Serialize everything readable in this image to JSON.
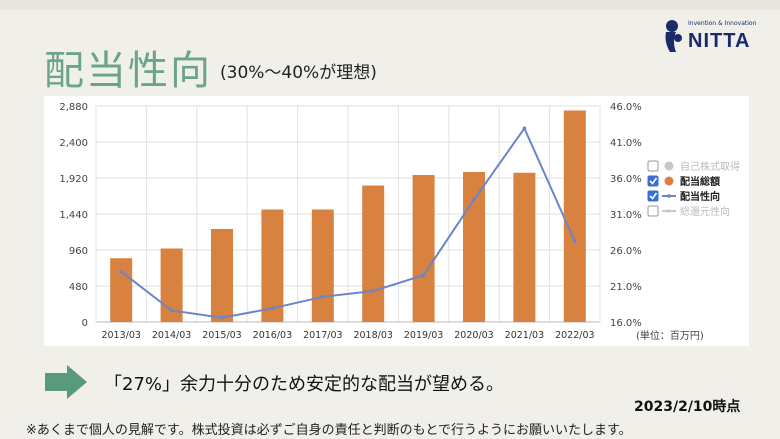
{
  "slide": {
    "title": "配当性向",
    "subtitle": "(30%〜40%が理想)",
    "logo_tagline": "Invention & Innovation",
    "logo_text": "NITTA",
    "message": "「27%」余力十分のため安定的な配当が望める。",
    "as_of": "2023/2/10時点",
    "disclaimer": "※あくまで個人の見解です。株式投資は必ずご自身の責任と判断のもとで行うようにお願いいたします。"
  },
  "colors": {
    "title": "#6aa58a",
    "bar": "#d9813e",
    "line": "#6a86c8",
    "arrow": "#5a9a7c",
    "grid": "#e2e2e2"
  },
  "chart_data": {
    "type": "bar",
    "categories": [
      "2013/03",
      "2014/03",
      "2015/03",
      "2016/03",
      "2017/03",
      "2018/03",
      "2019/03",
      "2020/03",
      "2021/03",
      "2022/03"
    ],
    "series": [
      {
        "name": "配当総額",
        "type": "bar",
        "axis": "left",
        "values": [
          850,
          980,
          1240,
          1500,
          1500,
          1820,
          1960,
          2000,
          1990,
          2820
        ]
      },
      {
        "name": "配当性向",
        "type": "line",
        "axis": "right",
        "values": [
          23.0,
          17.6,
          16.6,
          17.9,
          19.5,
          20.3,
          22.5,
          33.0,
          42.9,
          27.2
        ]
      }
    ],
    "y_left": {
      "ticks": [
        "0",
        "480",
        "960",
        "1,440",
        "1,920",
        "2,400",
        "2,880"
      ],
      "ylim": [
        0,
        2880
      ]
    },
    "y_right": {
      "ticks": [
        "16.0%",
        "21.0%",
        "26.0%",
        "31.0%",
        "36.0%",
        "41.0%",
        "46.0%"
      ],
      "ylim": [
        16,
        46
      ]
    },
    "unit_label": "(単位：百万円)",
    "legend": {
      "placement": "right",
      "items": [
        {
          "label": "自己株式取得",
          "checked": false,
          "marker": "dot",
          "active": false
        },
        {
          "label": "配当総額",
          "checked": true,
          "marker": "dot",
          "active": true
        },
        {
          "label": "配当性向",
          "checked": true,
          "marker": "line",
          "active": true
        },
        {
          "label": "総還元性向",
          "checked": false,
          "marker": "line",
          "active": false
        }
      ]
    },
    "grid": true
  }
}
